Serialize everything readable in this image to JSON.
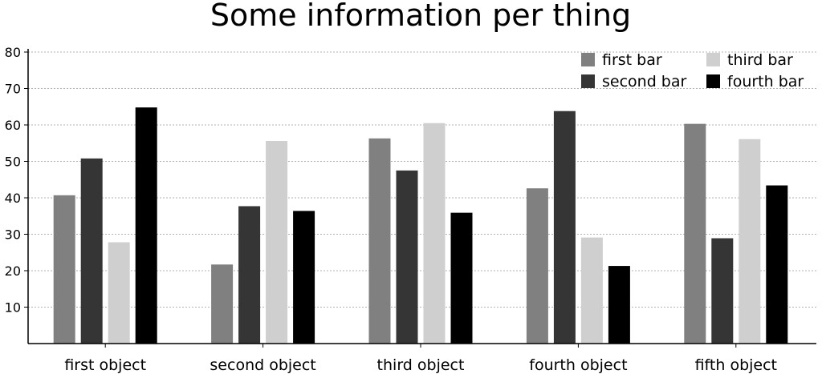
{
  "chart_data": {
    "type": "bar",
    "title": "Some information per thing",
    "xlabel": "",
    "ylabel": "",
    "ylim": [
      0,
      80
    ],
    "yticks": [
      10,
      20,
      30,
      40,
      50,
      60,
      70,
      80
    ],
    "grid": "horizontal",
    "legend_position": "top-right",
    "categories": [
      "first object",
      "second object",
      "third object",
      "fourth object",
      "fifth object"
    ],
    "series": [
      {
        "name": "first bar",
        "color": "#808080",
        "values": [
          40.7,
          21.7,
          56.3,
          42.6,
          60.3
        ]
      },
      {
        "name": "second bar",
        "color": "#353535",
        "values": [
          50.8,
          37.7,
          47.5,
          63.8,
          28.9
        ]
      },
      {
        "name": "third bar",
        "color": "#cfcfcf",
        "values": [
          27.8,
          55.6,
          60.5,
          29.1,
          56.1
        ]
      },
      {
        "name": "fourth bar",
        "color": "#000000",
        "values": [
          64.8,
          36.4,
          35.9,
          21.3,
          43.4
        ]
      }
    ]
  }
}
